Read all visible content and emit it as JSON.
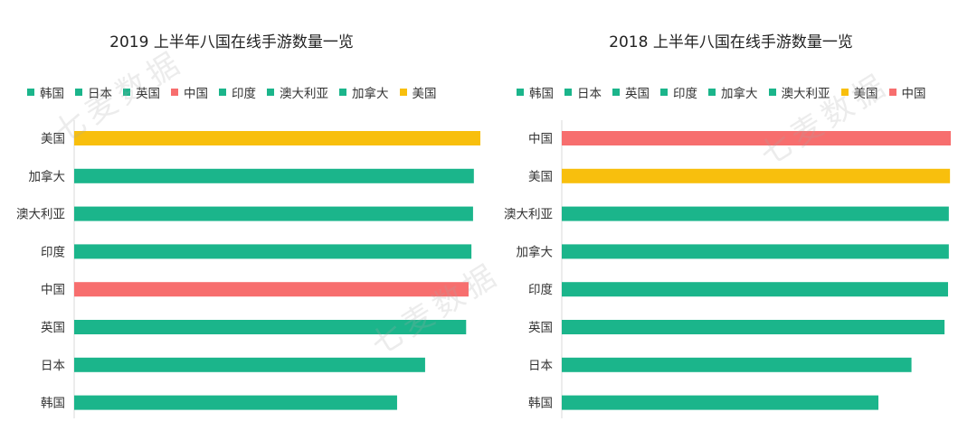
{
  "watermark": "七麦数据",
  "colors": {
    "green": "#1bb58b",
    "red": "#f76e6e",
    "yellow": "#f8bf0d"
  },
  "chart_data": [
    {
      "type": "bar",
      "orientation": "horizontal",
      "title": "2019 上半年八国在线手游数量一览",
      "legend_position": "top",
      "legend": [
        {
          "name": "韩国",
          "color": "#1bb58b"
        },
        {
          "name": "日本",
          "color": "#1bb58b"
        },
        {
          "name": "英国",
          "color": "#1bb58b"
        },
        {
          "name": "中国",
          "color": "#f76e6e"
        },
        {
          "name": "印度",
          "color": "#1bb58b"
        },
        {
          "name": "澳大利亚",
          "color": "#1bb58b"
        },
        {
          "name": "加拿大",
          "color": "#1bb58b"
        },
        {
          "name": "美国",
          "color": "#f8bf0d"
        }
      ],
      "categories": [
        "美国",
        "加拿大",
        "澳大利亚",
        "印度",
        "中国",
        "英国",
        "日本",
        "韩国"
      ],
      "values": [
        100,
        98.4,
        98.2,
        97.8,
        97.1,
        96.5,
        86.4,
        79.5
      ],
      "bar_colors": [
        "#f8bf0d",
        "#1bb58b",
        "#1bb58b",
        "#1bb58b",
        "#f76e6e",
        "#1bb58b",
        "#1bb58b",
        "#1bb58b"
      ],
      "xlim": [
        0,
        100
      ],
      "axis_labels_shown": false,
      "grid": false
    },
    {
      "type": "bar",
      "orientation": "horizontal",
      "title": "2018 上半年八国在线手游数量一览",
      "legend_position": "top",
      "legend": [
        {
          "name": "韩国",
          "color": "#1bb58b"
        },
        {
          "name": "日本",
          "color": "#1bb58b"
        },
        {
          "name": "英国",
          "color": "#1bb58b"
        },
        {
          "name": "印度",
          "color": "#1bb58b"
        },
        {
          "name": "加拿大",
          "color": "#1bb58b"
        },
        {
          "name": "澳大利亚",
          "color": "#1bb58b"
        },
        {
          "name": "美国",
          "color": "#f8bf0d"
        },
        {
          "name": "中国",
          "color": "#f76e6e"
        }
      ],
      "categories": [
        "中国",
        "美国",
        "澳大利亚",
        "加拿大",
        "印度",
        "英国",
        "日本",
        "韩国"
      ],
      "values": [
        100,
        99.8,
        99.5,
        99.5,
        99.3,
        98.4,
        89.9,
        81.4
      ],
      "bar_colors": [
        "#f76e6e",
        "#f8bf0d",
        "#1bb58b",
        "#1bb58b",
        "#1bb58b",
        "#1bb58b",
        "#1bb58b",
        "#1bb58b"
      ],
      "xlim": [
        0,
        100
      ],
      "axis_labels_shown": false,
      "grid": false
    }
  ]
}
